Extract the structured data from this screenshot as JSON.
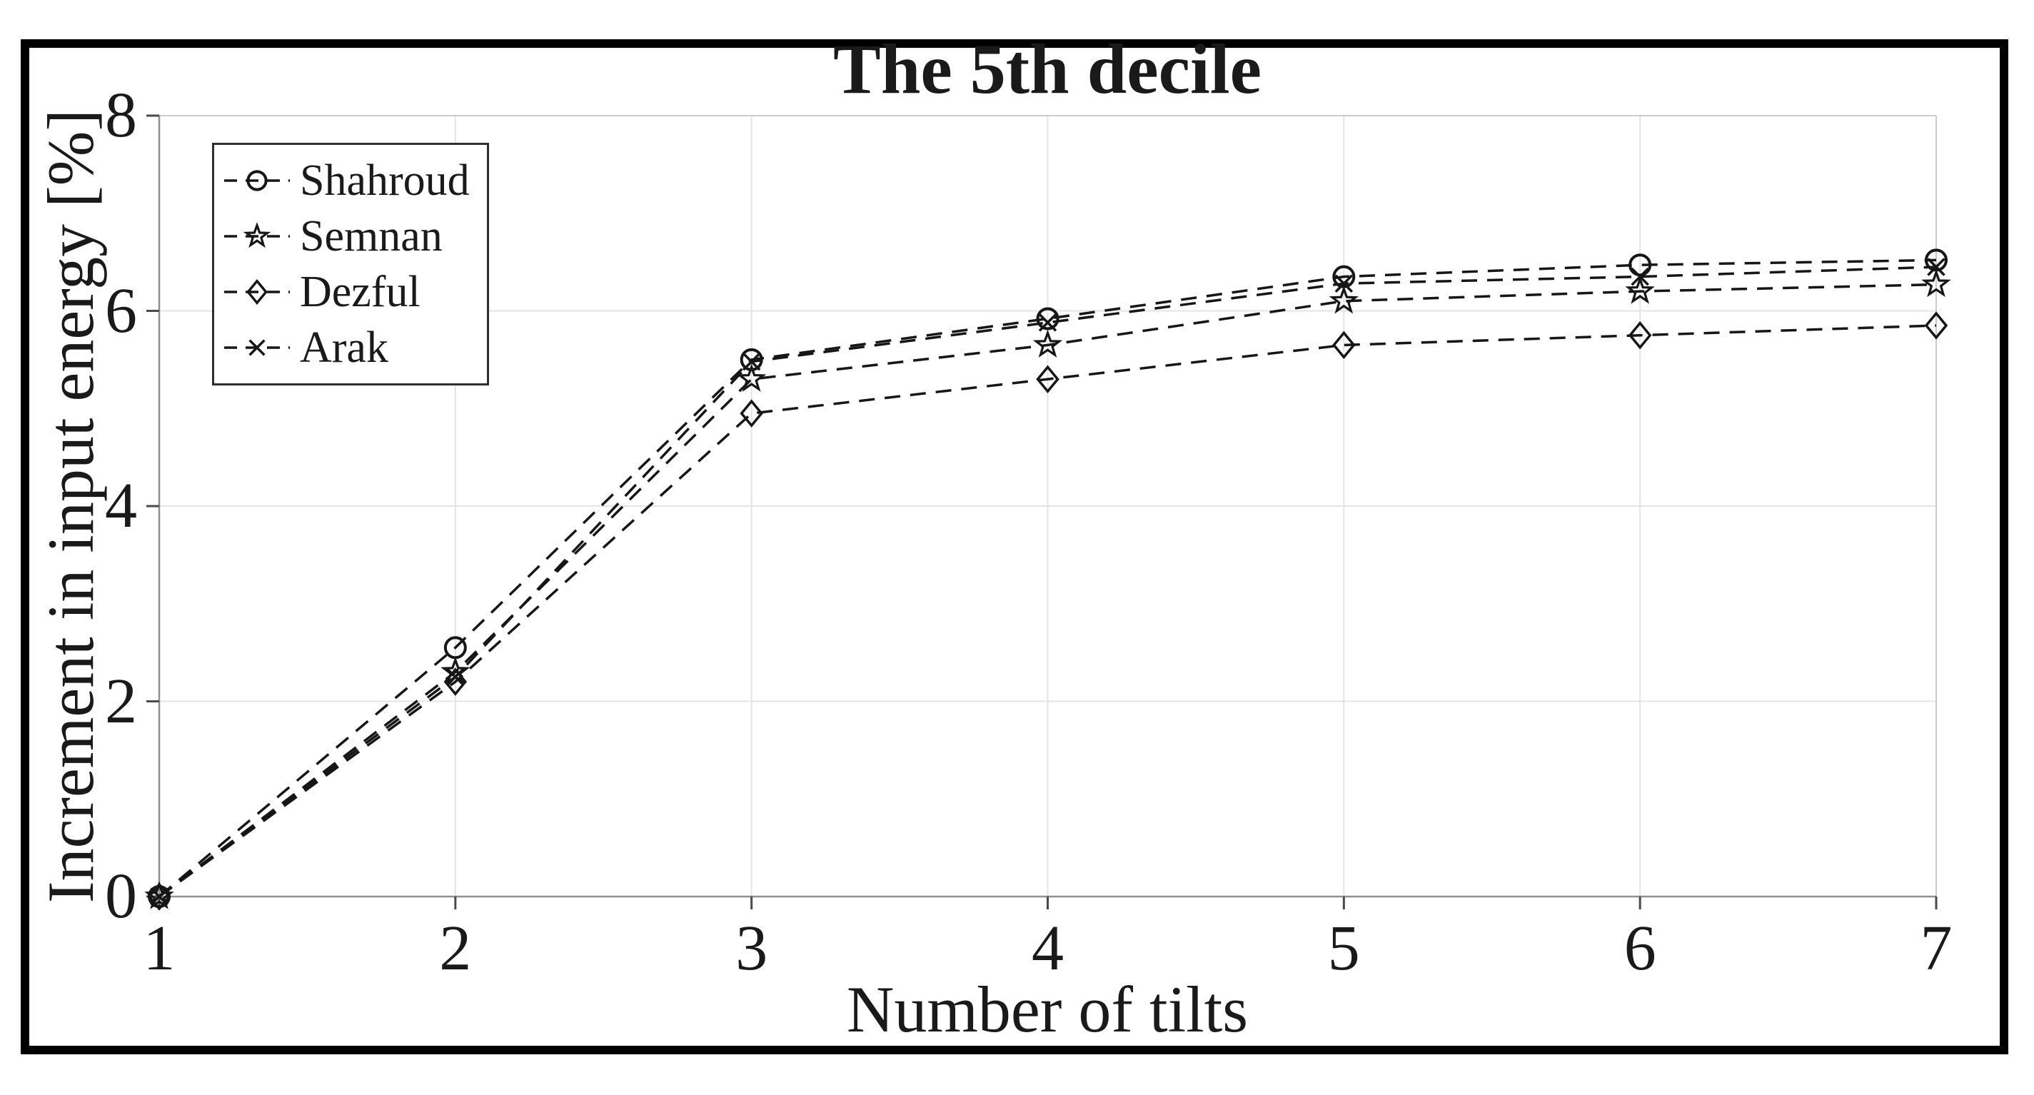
{
  "figure": {
    "border_color": "#000000",
    "background_color": "#ffffff",
    "text_color": "#1a1a1a"
  },
  "chart_data": {
    "type": "line",
    "title": "The 5th decile",
    "xlabel": "Number of tilts",
    "ylabel": "Increment in input energy [%]",
    "x": [
      1,
      2,
      3,
      4,
      5,
      6,
      7
    ],
    "x_ticks": [
      "1",
      "2",
      "3",
      "4",
      "5",
      "6",
      "7"
    ],
    "y_ticks": [
      "0",
      "2",
      "4",
      "6",
      "8"
    ],
    "y_tick_values": [
      0,
      2,
      4,
      6,
      8
    ],
    "xlim": [
      1,
      7
    ],
    "ylim": [
      0,
      8
    ],
    "grid": true,
    "line_style": "dashed",
    "line_color": "#161616",
    "grid_color": "#e4e4e4",
    "spine_color": "#909090",
    "box_color": "#cccccc",
    "legend_position": "top-left-inside",
    "series": [
      {
        "name": "Shahroud",
        "marker": "circle",
        "values": [
          0,
          2.55,
          5.5,
          5.92,
          6.35,
          6.47,
          6.52
        ]
      },
      {
        "name": "Semnan",
        "marker": "pentagram",
        "values": [
          0,
          2.3,
          5.3,
          5.65,
          6.1,
          6.2,
          6.27
        ]
      },
      {
        "name": "Dezful",
        "marker": "diamond",
        "values": [
          0,
          2.2,
          4.95,
          5.3,
          5.65,
          5.75,
          5.85
        ]
      },
      {
        "name": "Arak",
        "marker": "x",
        "values": [
          0,
          2.25,
          5.48,
          5.88,
          6.28,
          6.35,
          6.45
        ]
      }
    ]
  }
}
